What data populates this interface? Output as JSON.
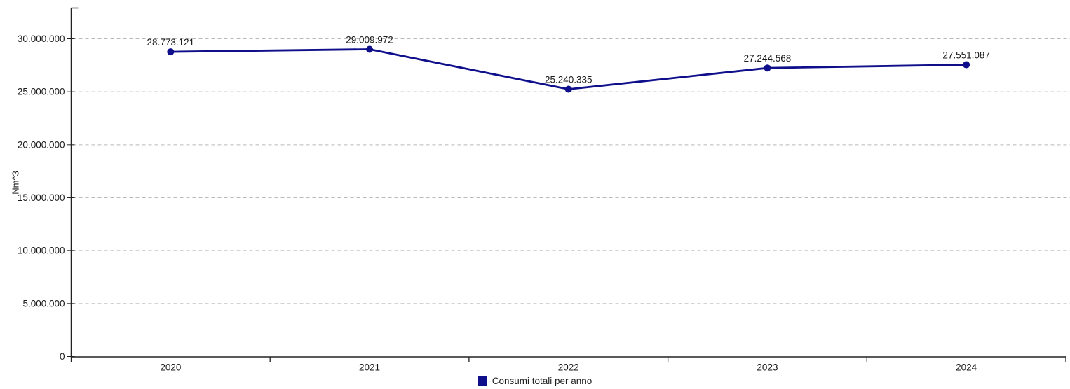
{
  "chart_data": {
    "type": "line",
    "title": "",
    "categories": [
      "2020",
      "2021",
      "2022",
      "2023",
      "2024"
    ],
    "series": [
      {
        "name": "Consumi totali per anno",
        "values": [
          28773121,
          29009972,
          25240335,
          27244568,
          27551087
        ],
        "data_labels": [
          "28.773.121",
          "29.009.972",
          "25.240.335",
          "27.244.568",
          "27.551.087"
        ],
        "color": "#0F0F8C"
      }
    ],
    "xlabel": "",
    "ylabel": "Nm^3",
    "ylim": [
      0,
      30000000
    ],
    "ytick_interval": 5000000,
    "ytick_labels": [
      "0",
      "5.000.000",
      "10.000.000",
      "15.000.000",
      "20.000.000",
      "25.000.000",
      "30.000.000"
    ],
    "grid": "horizontal-dashed",
    "gridline_color": "#b9b9b9",
    "axis_color": "#222222",
    "label_color": "#1a1a1a",
    "marker": "circle",
    "legend_position": "bottom-center"
  }
}
